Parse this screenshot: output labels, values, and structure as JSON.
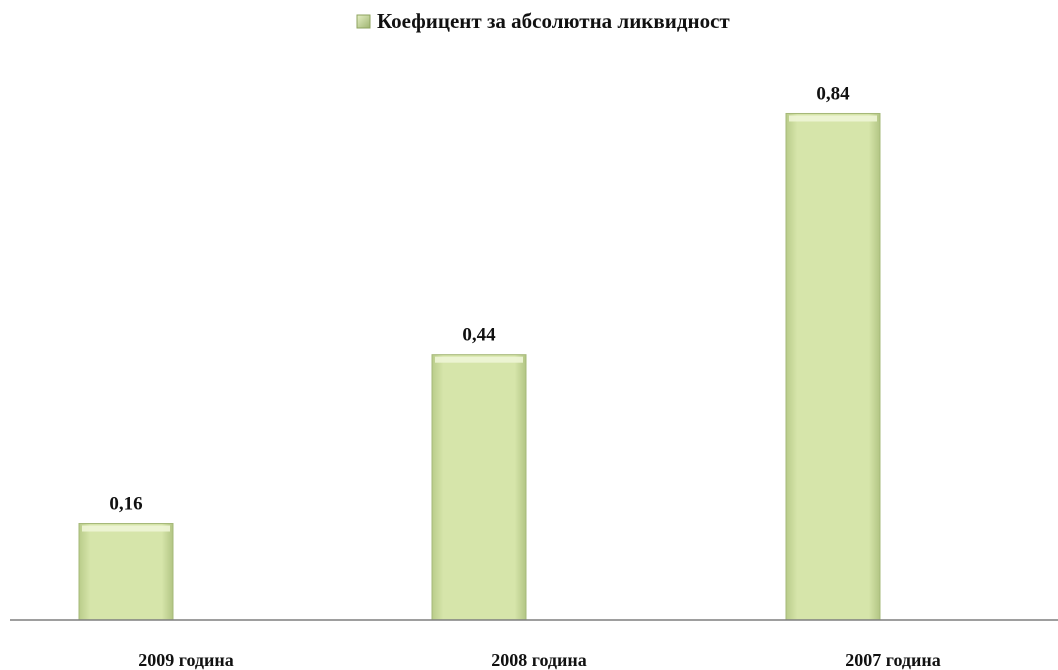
{
  "chart_data": {
    "type": "bar",
    "categories": [
      "2009 година",
      "2008 година",
      "2007 година"
    ],
    "series": [
      {
        "name": "Коефицент за абсолютна ликвидност",
        "values": [
          0.16,
          0.44,
          0.84
        ],
        "labels": [
          "0,16",
          "0,44",
          "0,84"
        ]
      }
    ],
    "ylim": [
      0,
      1.0
    ],
    "grid": false,
    "legend": "top-center",
    "bar_color": "#d4e3a6",
    "bar_edge_color": "#a5b878",
    "axis_color": "#7f7f7f"
  }
}
